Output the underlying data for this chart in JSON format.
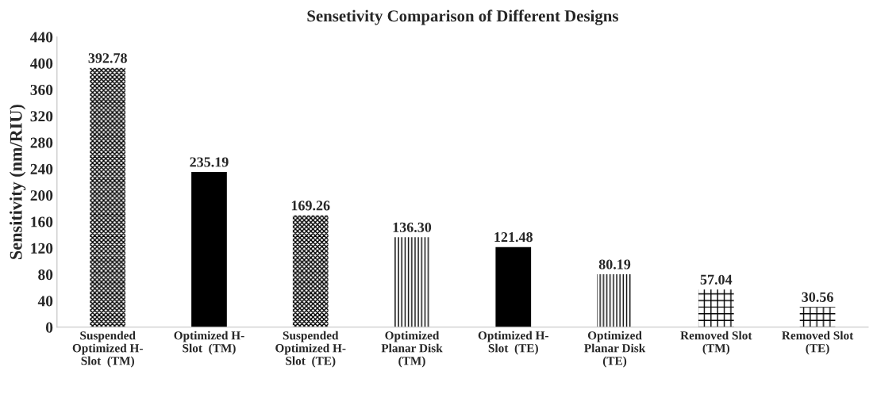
{
  "chart_data": {
    "type": "bar",
    "title": "Sensetivity Comparison of Different Designs",
    "ylabel": "Sensitivity (nm/RIU)",
    "categories": [
      "Suspended\nOptimized H-\nSlot  (TM)",
      "Optimized H-\nSlot  (TM)",
      "Suspended\nOptimized H-\nSlot  (TE)",
      "Optimized\nPlanar Disk\n(TM)",
      "Optimized H-\nSlot  (TE)",
      "Optimized\nPlanar Disk\n(TE)",
      "Removed Slot\n(TM)",
      "Removed Slot\n(TE)"
    ],
    "values": [
      392.78,
      235.19,
      169.26,
      136.3,
      121.48,
      80.19,
      57.04,
      30.56
    ],
    "value_labels": [
      "392.78",
      "235.19",
      "169.26",
      "136.30",
      "121.48",
      "80.19",
      "57.04",
      "30.56"
    ],
    "colors": [
      "#000000",
      "#000000",
      "#000000",
      "#000000",
      "#000000",
      "#000000",
      "#000000",
      "#000000"
    ],
    "ylim": [
      0,
      440
    ],
    "yticks": [
      0,
      40,
      80,
      120,
      160,
      200,
      240,
      280,
      320,
      360,
      400,
      440
    ],
    "grid": false
  }
}
